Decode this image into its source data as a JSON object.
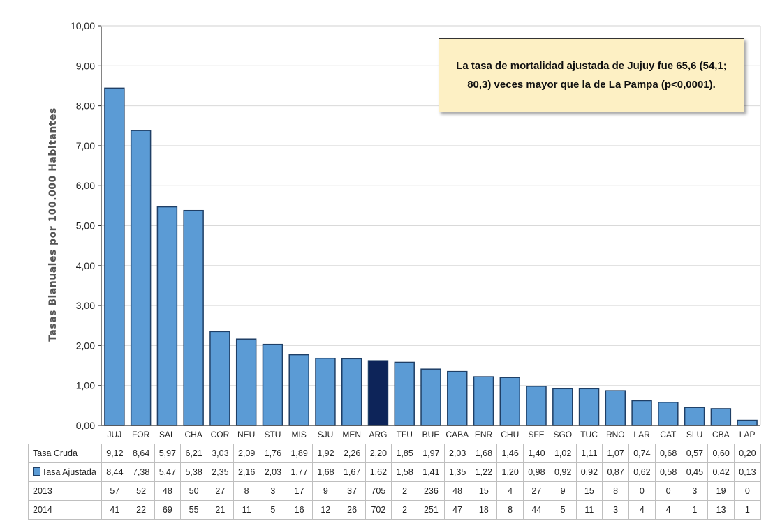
{
  "chart_data": {
    "type": "bar",
    "ylabel": "Tasas Bianuales por 100.000 Habitantes",
    "ylim": [
      0,
      10
    ],
    "yticks": [
      "0,00",
      "1,00",
      "2,00",
      "3,00",
      "4,00",
      "5,00",
      "6,00",
      "7,00",
      "8,00",
      "9,00",
      "10,00"
    ],
    "grid": true,
    "categories": [
      "JUJ",
      "FOR",
      "SAL",
      "CHA",
      "COR",
      "NEU",
      "STU",
      "MIS",
      "SJU",
      "MEN",
      "ARG",
      "TFU",
      "BUE",
      "CABA",
      "ENR",
      "CHU",
      "SFE",
      "SGO",
      "TUC",
      "RNO",
      "LAR",
      "CAT",
      "SLU",
      "CBA",
      "LAP"
    ],
    "highlight_category": "ARG",
    "colors": {
      "bar": "#5b9bd5",
      "bar_highlight": "#0d2459",
      "bar_border": "#1f3f66"
    },
    "series": [
      {
        "name": "Tasa Ajustada",
        "values": [
          8.44,
          7.38,
          5.47,
          5.38,
          2.35,
          2.16,
          2.03,
          1.77,
          1.68,
          1.67,
          1.62,
          1.58,
          1.41,
          1.35,
          1.22,
          1.2,
          0.98,
          0.92,
          0.92,
          0.87,
          0.62,
          0.58,
          0.45,
          0.42,
          0.13
        ]
      }
    ],
    "annotation": "La tasa de mortalidad ajustada de Jujuy fue 65,6 (54,1; 80,3) veces mayor que la de La Pampa (p<0,0001).",
    "table": {
      "rows": [
        {
          "label": "Tasa Cruda",
          "legend": false,
          "values": [
            "9,12",
            "8,64",
            "5,97",
            "6,21",
            "3,03",
            "2,09",
            "1,76",
            "1,89",
            "1,92",
            "2,26",
            "2,20",
            "1,85",
            "1,97",
            "2,03",
            "1,68",
            "1,46",
            "1,40",
            "1,02",
            "1,11",
            "1,07",
            "0,74",
            "0,68",
            "0,57",
            "0,60",
            "0,20"
          ]
        },
        {
          "label": "Tasa Ajustada",
          "legend": true,
          "values": [
            "8,44",
            "7,38",
            "5,47",
            "5,38",
            "2,35",
            "2,16",
            "2,03",
            "1,77",
            "1,68",
            "1,67",
            "1,62",
            "1,58",
            "1,41",
            "1,35",
            "1,22",
            "1,20",
            "0,98",
            "0,92",
            "0,92",
            "0,87",
            "0,62",
            "0,58",
            "0,45",
            "0,42",
            "0,13"
          ]
        },
        {
          "label": "2013",
          "legend": false,
          "values": [
            "57",
            "52",
            "48",
            "50",
            "27",
            "8",
            "3",
            "17",
            "9",
            "37",
            "705",
            "2",
            "236",
            "48",
            "15",
            "4",
            "27",
            "9",
            "15",
            "8",
            "0",
            "0",
            "3",
            "19",
            "0"
          ]
        },
        {
          "label": "2014",
          "legend": false,
          "values": [
            "41",
            "22",
            "69",
            "55",
            "21",
            "11",
            "5",
            "16",
            "12",
            "26",
            "702",
            "2",
            "251",
            "47",
            "18",
            "8",
            "44",
            "5",
            "11",
            "3",
            "4",
            "4",
            "1",
            "13",
            "1"
          ]
        }
      ]
    }
  }
}
